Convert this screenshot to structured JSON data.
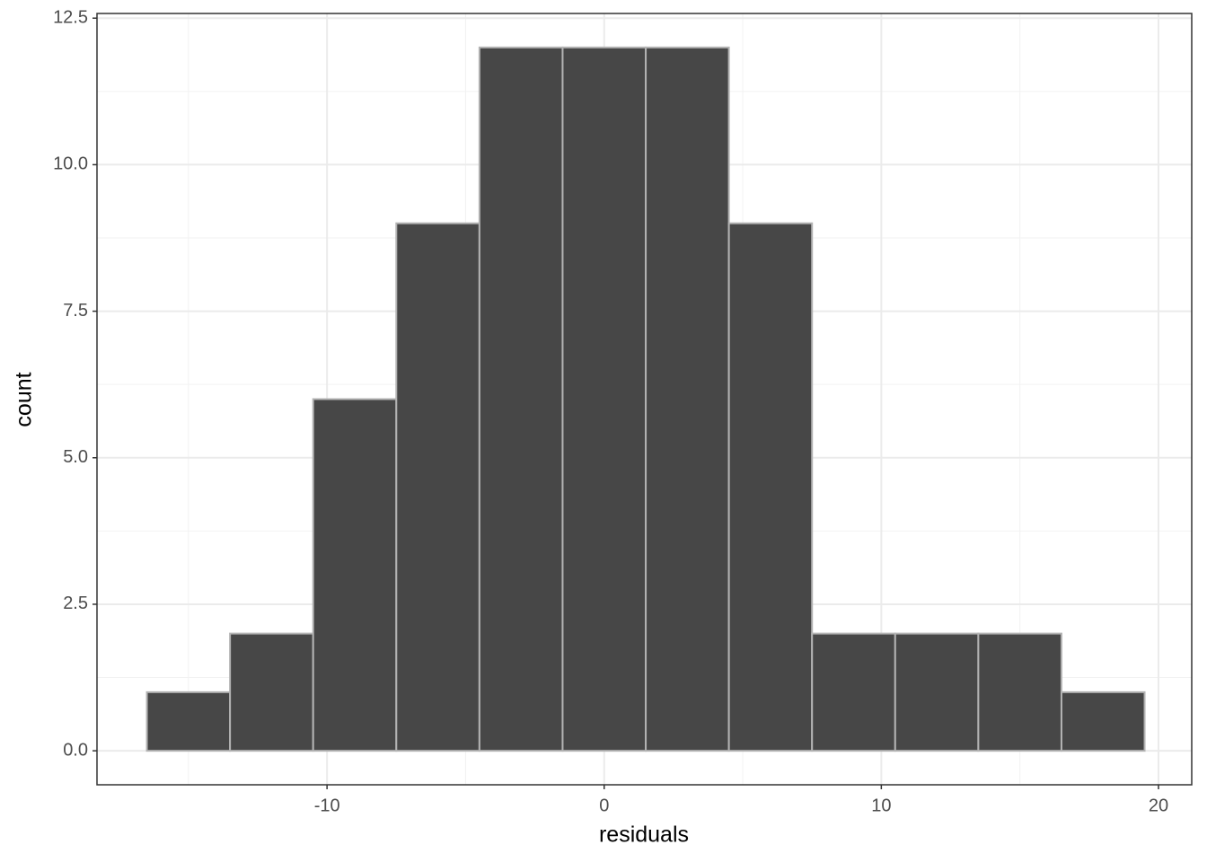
{
  "chart_data": {
    "type": "histogram",
    "x_label": "residuals",
    "y_label": "count",
    "bins": [
      -16.5,
      -13.5,
      -10.5,
      -7.5,
      -4.5,
      -1.5,
      1.5,
      4.5,
      7.5,
      10.5,
      13.5,
      16.5,
      19.5
    ],
    "counts": [
      1,
      2,
      6,
      9,
      12,
      12,
      12,
      9,
      2,
      2,
      2,
      1
    ],
    "color": "#474747",
    "edge_color": "#b3b3b3",
    "xlim": [
      -18.3,
      21.2
    ],
    "ylim": [
      -0.58,
      12.58
    ],
    "xticks": [
      -10,
      0,
      10,
      20
    ],
    "yticks": [
      {
        "value": 0,
        "label": "0.0"
      },
      {
        "value": 2.5,
        "label": "2.5"
      },
      {
        "value": 5,
        "label": "5.0"
      },
      {
        "value": 7.5,
        "label": "7.5"
      },
      {
        "value": 10,
        "label": "10.0"
      },
      {
        "value": 12.5,
        "label": "12.5"
      }
    ],
    "grid": true
  }
}
